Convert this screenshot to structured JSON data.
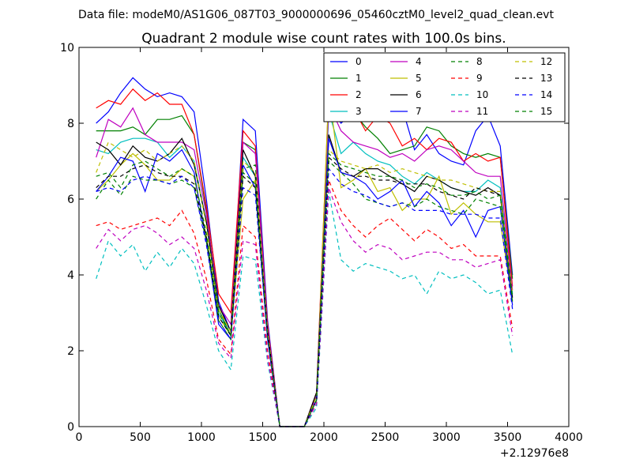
{
  "chart_data": {
    "type": "line",
    "suptitle": "Data file: modeM0/AS1G06_087T03_9000000696_05460cztM0_level2_quad_clean.evt",
    "title": "Quadrant 2 module wise count rates with 100.0s bins.",
    "xlabel": "",
    "ylabel": "",
    "x_offset_label": "+2.12976e8",
    "xlim": [
      0,
      4000
    ],
    "ylim": [
      0,
      10
    ],
    "xticks": [
      0,
      500,
      1000,
      1500,
      2000,
      2500,
      3000,
      3500,
      4000
    ],
    "yticks": [
      0,
      2,
      4,
      6,
      8,
      10
    ],
    "grid": false,
    "legend_position": "top-right",
    "x": [
      140,
      240,
      340,
      440,
      540,
      640,
      740,
      840,
      940,
      1040,
      1140,
      1240,
      1340,
      1440,
      1540,
      1640,
      1740,
      1840,
      1940,
      2040,
      2140,
      2240,
      2340,
      2440,
      2540,
      2640,
      2740,
      2840,
      2940,
      3040,
      3140,
      3240,
      3340,
      3440,
      3540
    ],
    "series": [
      {
        "name": "0",
        "color": "#0000ff",
        "style": "solid",
        "values": [
          8.0,
          8.3,
          8.8,
          9.2,
          8.9,
          8.7,
          8.8,
          8.7,
          8.3,
          6.0,
          3.3,
          2.5,
          8.1,
          7.8,
          2.8,
          0,
          0,
          0,
          0.9,
          8.4,
          8.0,
          8.3,
          8.1,
          8.2,
          8.3,
          8.4,
          7.3,
          7.7,
          7.2,
          7.0,
          6.9,
          7.8,
          8.2,
          7.4,
          4.0
        ]
      },
      {
        "name": "1",
        "color": "#008000",
        "style": "solid",
        "values": [
          7.8,
          7.8,
          7.8,
          7.9,
          7.7,
          8.1,
          8.1,
          8.2,
          7.7,
          5.7,
          3.1,
          2.4,
          7.5,
          7.3,
          2.6,
          0,
          0,
          0,
          0.8,
          8.6,
          8.2,
          8.3,
          7.9,
          7.6,
          7.2,
          7.3,
          7.4,
          7.9,
          7.8,
          7.4,
          7.2,
          7.1,
          7.2,
          7.1,
          3.9
        ]
      },
      {
        "name": "2",
        "color": "#ff0000",
        "style": "solid",
        "values": [
          8.4,
          8.6,
          8.5,
          8.9,
          8.6,
          8.8,
          8.5,
          8.5,
          7.7,
          5.8,
          3.5,
          3.0,
          7.8,
          7.4,
          2.7,
          0,
          0,
          0,
          0.9,
          8.8,
          8.3,
          8.4,
          7.8,
          8.2,
          8.0,
          7.4,
          7.6,
          7.3,
          7.6,
          7.5,
          7.0,
          7.2,
          7.0,
          7.1,
          3.7
        ]
      },
      {
        "name": "3",
        "color": "#00bfbf",
        "style": "solid",
        "values": [
          7.3,
          7.2,
          7.5,
          7.6,
          7.6,
          7.5,
          7.1,
          7.4,
          7.0,
          5.4,
          3.0,
          2.4,
          7.1,
          6.6,
          2.5,
          0,
          0,
          0,
          0.8,
          8.3,
          7.2,
          7.5,
          7.2,
          7.0,
          6.9,
          6.6,
          6.4,
          6.7,
          6.5,
          6.3,
          6.2,
          6.2,
          6.5,
          6.3,
          3.5
        ]
      },
      {
        "name": "4",
        "color": "#bf00bf",
        "style": "solid",
        "values": [
          7.1,
          8.1,
          7.9,
          8.4,
          7.7,
          7.5,
          7.5,
          7.5,
          7.3,
          5.6,
          3.2,
          2.7,
          7.5,
          7.2,
          2.6,
          0,
          0,
          0,
          0.8,
          8.5,
          7.8,
          7.5,
          7.4,
          7.3,
          7.1,
          7.2,
          7.0,
          7.3,
          7.4,
          7.3,
          7.0,
          6.7,
          6.6,
          6.6,
          3.6
        ]
      },
      {
        "name": "5",
        "color": "#bfbf00",
        "style": "solid",
        "values": [
          6.2,
          6.5,
          6.9,
          7.2,
          6.9,
          6.5,
          6.5,
          6.8,
          6.6,
          5.0,
          2.9,
          2.4,
          6.0,
          6.5,
          2.4,
          0,
          0,
          0,
          0.7,
          8.9,
          6.3,
          6.5,
          6.8,
          6.2,
          6.3,
          5.7,
          6.0,
          6.0,
          6.6,
          5.6,
          5.9,
          5.6,
          5.4,
          5.4,
          3.3
        ]
      },
      {
        "name": "6",
        "color": "#000000",
        "style": "solid",
        "values": [
          7.5,
          7.3,
          6.9,
          7.4,
          7.1,
          7.0,
          7.2,
          7.6,
          6.9,
          5.4,
          3.2,
          2.5,
          7.3,
          6.6,
          2.5,
          0,
          0,
          0,
          0.9,
          7.7,
          6.7,
          6.6,
          6.8,
          6.8,
          6.6,
          6.4,
          6.2,
          6.6,
          6.5,
          6.3,
          6.2,
          6.1,
          6.3,
          6.1,
          3.4
        ]
      },
      {
        "name": "7",
        "color": "#0000ff",
        "style": "solid",
        "values": [
          6.2,
          6.6,
          7.1,
          7.0,
          6.2,
          7.2,
          7.0,
          7.3,
          6.7,
          4.9,
          2.7,
          2.3,
          6.9,
          6.3,
          2.3,
          0,
          0,
          0,
          0.7,
          7.6,
          6.7,
          6.6,
          6.4,
          6.0,
          6.2,
          6.5,
          5.8,
          6.2,
          5.9,
          5.3,
          5.7,
          5.0,
          5.7,
          5.8,
          3.2
        ]
      },
      {
        "name": "8",
        "color": "#008000",
        "style": "dashed",
        "values": [
          6.0,
          6.5,
          6.1,
          6.6,
          6.5,
          6.5,
          6.4,
          6.5,
          6.3,
          4.9,
          2.8,
          2.3,
          6.8,
          6.9,
          2.4,
          0,
          0,
          0,
          0.7,
          7.0,
          6.7,
          6.4,
          6.0,
          5.9,
          5.8,
          5.9,
          5.8,
          6.0,
          5.8,
          5.7,
          5.6,
          6.0,
          5.9,
          5.8,
          3.3
        ]
      },
      {
        "name": "9",
        "color": "#ff0000",
        "style": "dashed",
        "values": [
          5.3,
          5.4,
          5.2,
          5.3,
          5.4,
          5.5,
          5.3,
          5.7,
          5.1,
          3.9,
          2.3,
          1.9,
          5.3,
          5.0,
          2.0,
          0,
          0,
          0,
          0.6,
          6.5,
          5.7,
          5.3,
          5.0,
          5.3,
          5.5,
          5.2,
          4.9,
          5.2,
          5.0,
          4.7,
          4.8,
          4.5,
          4.5,
          4.5,
          2.6
        ]
      },
      {
        "name": "10",
        "color": "#00bfbf",
        "style": "dashed",
        "values": [
          3.9,
          4.9,
          4.5,
          4.8,
          4.1,
          4.6,
          4.2,
          4.7,
          4.3,
          3.2,
          2.0,
          1.5,
          4.5,
          4.4,
          1.7,
          0,
          0,
          0,
          0.5,
          6.2,
          4.4,
          4.1,
          4.3,
          4.2,
          4.1,
          3.9,
          4.0,
          3.5,
          4.1,
          3.9,
          4.0,
          3.8,
          3.5,
          3.6,
          1.9
        ]
      },
      {
        "name": "11",
        "color": "#bf00bf",
        "style": "dashed",
        "values": [
          4.7,
          5.2,
          4.9,
          5.2,
          5.3,
          5.1,
          4.8,
          5.0,
          4.7,
          3.6,
          2.2,
          1.8,
          4.9,
          4.8,
          1.8,
          0,
          0,
          0,
          0.6,
          6.3,
          5.4,
          4.9,
          4.6,
          4.8,
          4.7,
          4.4,
          4.5,
          4.6,
          4.6,
          4.4,
          4.4,
          4.2,
          4.3,
          4.4,
          2.4
        ]
      },
      {
        "name": "12",
        "color": "#bfbf00",
        "style": "dashed",
        "values": [
          6.7,
          7.5,
          7.3,
          7.1,
          7.3,
          7.0,
          7.2,
          7.4,
          7.0,
          5.3,
          3.1,
          2.5,
          7.0,
          6.7,
          2.5,
          0,
          0,
          0,
          0.8,
          7.3,
          7.0,
          6.9,
          6.8,
          6.9,
          6.7,
          6.8,
          6.7,
          6.6,
          6.5,
          6.5,
          6.4,
          6.3,
          6.2,
          6.2,
          3.5
        ]
      },
      {
        "name": "13",
        "color": "#000000",
        "style": "dashed",
        "values": [
          6.3,
          6.6,
          6.6,
          6.8,
          6.9,
          6.7,
          6.6,
          6.6,
          6.4,
          5.0,
          2.9,
          2.4,
          6.6,
          6.3,
          2.4,
          0,
          0,
          0,
          0.7,
          7.1,
          6.8,
          6.6,
          6.6,
          6.5,
          6.5,
          6.4,
          6.4,
          6.4,
          6.2,
          6.1,
          6.0,
          6.3,
          6.2,
          6.1,
          3.4
        ]
      },
      {
        "name": "14",
        "color": "#0000ff",
        "style": "dashed",
        "values": [
          6.2,
          6.3,
          6.2,
          6.5,
          6.6,
          6.5,
          6.4,
          6.6,
          6.3,
          4.8,
          2.8,
          2.3,
          6.3,
          6.1,
          2.3,
          0,
          0,
          0,
          0.7,
          6.8,
          6.4,
          6.2,
          6.1,
          5.9,
          5.8,
          5.9,
          5.7,
          5.7,
          5.7,
          5.6,
          5.6,
          5.6,
          5.5,
          5.5,
          3.1
        ]
      },
      {
        "name": "15",
        "color": "#008000",
        "style": "dashed",
        "values": [
          6.6,
          6.7,
          6.3,
          6.9,
          7.0,
          6.8,
          6.6,
          6.8,
          6.6,
          5.1,
          3.0,
          2.4,
          6.7,
          6.4,
          2.4,
          0,
          0,
          0,
          0.7,
          7.2,
          6.9,
          6.8,
          6.7,
          6.6,
          6.6,
          6.5,
          6.3,
          6.4,
          6.3,
          6.1,
          6.1,
          6.2,
          6.0,
          6.1,
          3.4
        ]
      }
    ]
  }
}
